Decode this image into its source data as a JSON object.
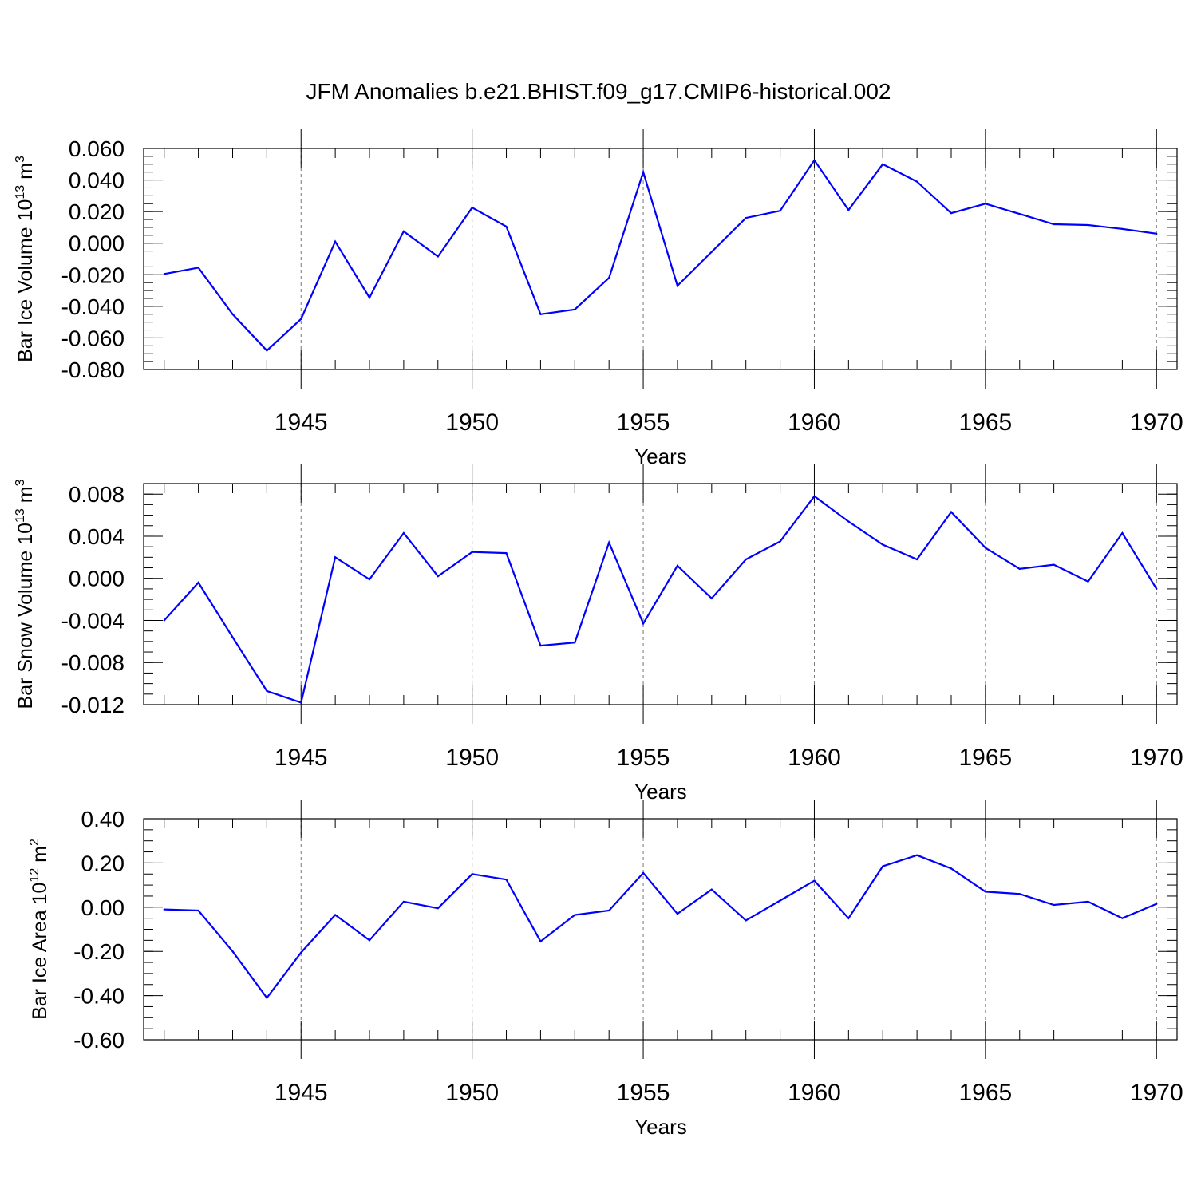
{
  "figure_title": "JFM Anomalies b.e21.BHIST.f09_g17.CMIP6-historical.002",
  "line_color": "#0000ff",
  "chart_data": [
    {
      "type": "line",
      "title": "JFM Anomalies b.e21.BHIST.f09_g17.CMIP6-historical.002",
      "ylabel": {
        "main": "Bar Ice Volume 10",
        "exp": "13",
        "unit": " m",
        "unit_exp": "3"
      },
      "xlabel": "Years",
      "xlim": [
        1940.4,
        1970.6
      ],
      "ylim": [
        -0.08,
        0.06
      ],
      "ymajor": [
        0.06,
        0.04,
        0.02,
        0.0,
        -0.02,
        -0.04,
        -0.06,
        -0.08
      ],
      "ymajor_labels": [
        "0.060",
        "0.040",
        "0.020",
        "0.000",
        "-0.020",
        "-0.040",
        "-0.060",
        "-0.080"
      ],
      "yminor_step": 0.005,
      "xmajor": [
        1945,
        1950,
        1955,
        1960,
        1965,
        1970
      ],
      "xmajor_labels": [
        "1945",
        "1950",
        "1955",
        "1960",
        "1965",
        "1970"
      ],
      "xminor": [
        1941,
        1942,
        1943,
        1944,
        1946,
        1947,
        1948,
        1949,
        1951,
        1952,
        1953,
        1954,
        1956,
        1957,
        1958,
        1959,
        1961,
        1962,
        1963,
        1964,
        1966,
        1967,
        1968,
        1969
      ],
      "grid_x": true,
      "x": [
        1941,
        1942,
        1943,
        1944,
        1945,
        1946,
        1947,
        1948,
        1949,
        1950,
        1951,
        1952,
        1953,
        1954,
        1955,
        1956,
        1957,
        1958,
        1959,
        1960,
        1961,
        1962,
        1963,
        1964,
        1965,
        1966,
        1967,
        1968,
        1969,
        1970
      ],
      "series": [
        {
          "name": "Bar Ice Volume",
          "values": [
            -0.0195,
            -0.0155,
            -0.045,
            -0.068,
            -0.048,
            0.001,
            -0.0345,
            0.0075,
            -0.0085,
            0.0225,
            0.0105,
            -0.045,
            -0.042,
            -0.022,
            0.045,
            -0.027,
            -0.0055,
            0.016,
            0.0205,
            0.0525,
            0.021,
            0.05,
            0.039,
            0.019,
            0.025,
            0.0185,
            0.012,
            0.0115,
            0.009,
            0.006
          ]
        }
      ]
    },
    {
      "type": "line",
      "ylabel": {
        "main": "Bar Snow Volume 10",
        "exp": "13",
        "unit": " m",
        "unit_exp": "3"
      },
      "xlabel": "Years",
      "xlim": [
        1940.4,
        1970.6
      ],
      "ylim": [
        -0.012,
        0.009
      ],
      "ymajor": [
        0.008,
        0.004,
        0.0,
        -0.004,
        -0.008,
        -0.012
      ],
      "ymajor_labels": [
        "0.008",
        "0.004",
        "0.000",
        "-0.004",
        "-0.008",
        "-0.012"
      ],
      "yminor_step": 0.001,
      "xmajor": [
        1945,
        1950,
        1955,
        1960,
        1965,
        1970
      ],
      "xmajor_labels": [
        "1945",
        "1950",
        "1955",
        "1960",
        "1965",
        "1970"
      ],
      "xminor": [
        1941,
        1942,
        1943,
        1944,
        1946,
        1947,
        1948,
        1949,
        1951,
        1952,
        1953,
        1954,
        1956,
        1957,
        1958,
        1959,
        1961,
        1962,
        1963,
        1964,
        1966,
        1967,
        1968,
        1969
      ],
      "grid_x": true,
      "x": [
        1941,
        1942,
        1943,
        1944,
        1945,
        1946,
        1947,
        1948,
        1949,
        1950,
        1951,
        1952,
        1953,
        1954,
        1955,
        1956,
        1957,
        1958,
        1959,
        1960,
        1961,
        1962,
        1963,
        1964,
        1965,
        1966,
        1967,
        1968,
        1969,
        1970
      ],
      "series": [
        {
          "name": "Bar Snow Volume",
          "values": [
            -0.004,
            -0.0004,
            -0.0056,
            -0.0107,
            -0.0118,
            0.002,
            -0.0001,
            0.0043,
            0.0002,
            0.0025,
            0.0024,
            -0.0064,
            -0.0061,
            0.0034,
            -0.0043,
            0.0012,
            -0.0019,
            0.0018,
            0.0035,
            0.0078,
            0.0054,
            0.0032,
            0.0018,
            0.0063,
            0.0029,
            0.0009,
            0.0013,
            -0.0003,
            0.0043,
            -0.001
          ]
        }
      ]
    },
    {
      "type": "line",
      "ylabel": {
        "main": "Bar Ice Area 10",
        "exp": "12",
        "unit": " m",
        "unit_exp": "2"
      },
      "xlabel": "Years",
      "xlim": [
        1940.4,
        1970.6
      ],
      "ylim": [
        -0.6,
        0.4
      ],
      "ymajor": [
        0.4,
        0.2,
        0.0,
        -0.2,
        -0.4,
        -0.6
      ],
      "ymajor_labels": [
        "0.40",
        "0.20",
        "0.00",
        "-0.20",
        "-0.40",
        "-0.60"
      ],
      "yminor_step": 0.05,
      "xmajor": [
        1945,
        1950,
        1955,
        1960,
        1965,
        1970
      ],
      "xmajor_labels": [
        "1945",
        "1950",
        "1955",
        "1960",
        "1965",
        "1970"
      ],
      "xminor": [
        1941,
        1942,
        1943,
        1944,
        1946,
        1947,
        1948,
        1949,
        1951,
        1952,
        1953,
        1954,
        1956,
        1957,
        1958,
        1959,
        1961,
        1962,
        1963,
        1964,
        1966,
        1967,
        1968,
        1969
      ],
      "grid_x": true,
      "x": [
        1941,
        1942,
        1943,
        1944,
        1945,
        1946,
        1947,
        1948,
        1949,
        1950,
        1951,
        1952,
        1953,
        1954,
        1955,
        1956,
        1957,
        1958,
        1959,
        1960,
        1961,
        1962,
        1963,
        1964,
        1965,
        1966,
        1967,
        1968,
        1969,
        1970
      ],
      "series": [
        {
          "name": "Bar Ice Area",
          "values": [
            -0.01,
            -0.015,
            -0.2,
            -0.41,
            -0.205,
            -0.035,
            -0.15,
            0.025,
            -0.005,
            0.15,
            0.125,
            -0.155,
            -0.035,
            -0.015,
            0.155,
            -0.03,
            0.08,
            -0.06,
            0.03,
            0.12,
            -0.05,
            0.185,
            0.235,
            0.175,
            0.07,
            0.06,
            0.01,
            0.025,
            -0.05,
            0.015
          ]
        }
      ]
    }
  ]
}
